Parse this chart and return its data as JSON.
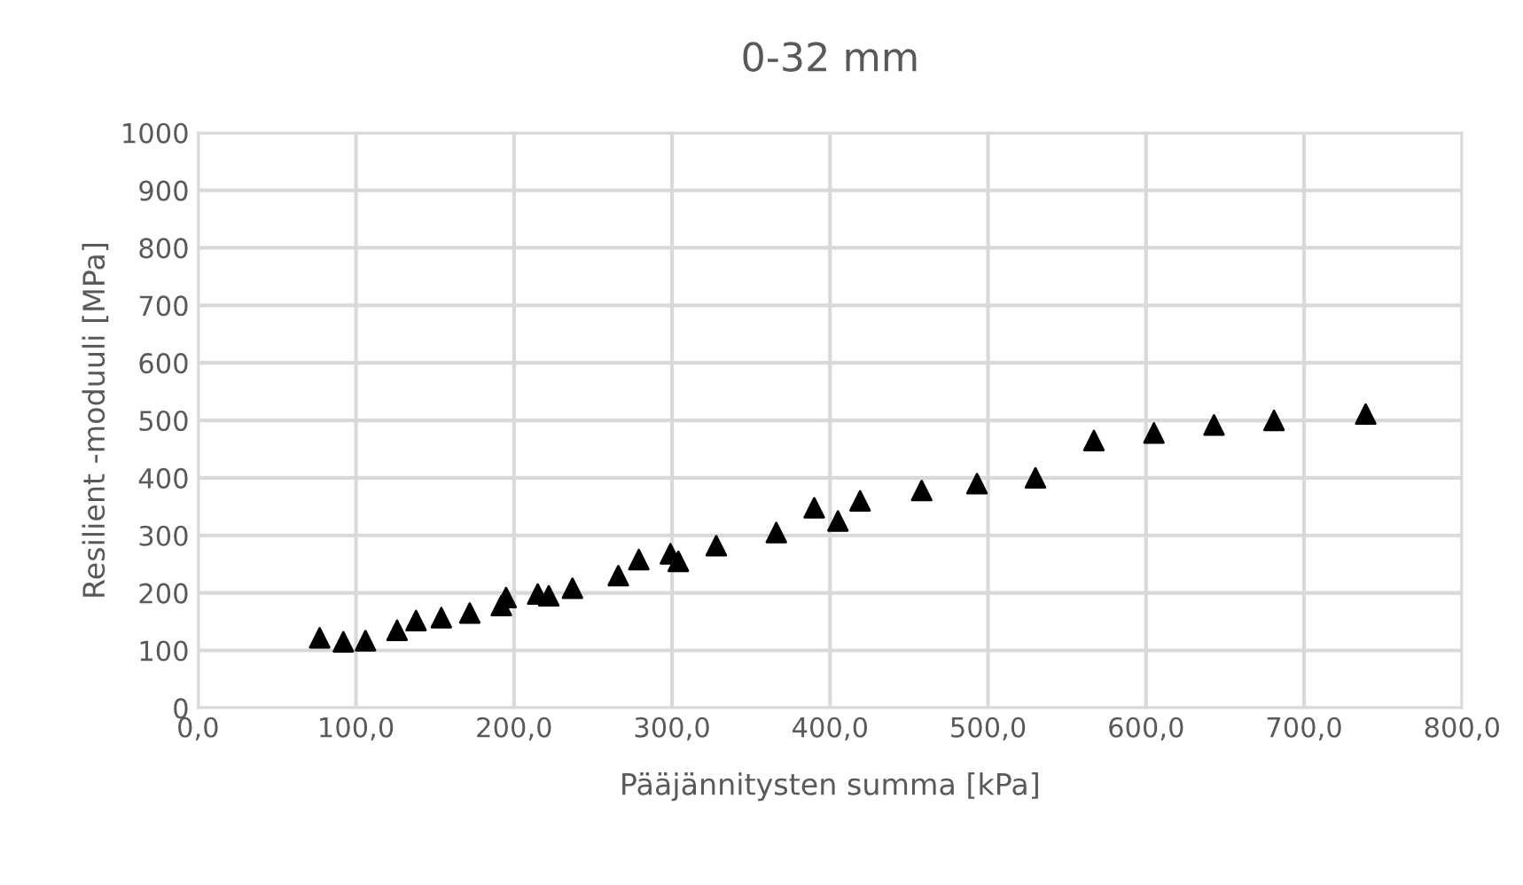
{
  "chart_data": {
    "type": "scatter",
    "title": "0-32 mm",
    "xlabel": "Pääjännitysten summa [kPa]",
    "ylabel": "Resilient -moduuli [MPa]",
    "x": [
      77,
      92,
      106,
      126,
      138,
      154,
      172,
      192,
      195,
      215,
      222,
      237,
      266,
      279,
      299,
      304,
      328,
      366,
      390,
      405,
      419,
      458,
      493,
      530,
      567,
      605,
      643,
      681,
      739
    ],
    "series": [
      {
        "color": "#000000",
        "values": [
          122,
          115,
          117,
          135,
          152,
          157,
          165,
          178,
          192,
          198,
          195,
          208,
          230,
          258,
          268,
          255,
          282,
          305,
          348,
          325,
          360,
          378,
          390,
          400,
          465,
          478,
          492,
          500,
          511
        ]
      }
    ],
    "xlim": [
      0,
      800
    ],
    "ylim": [
      0,
      1000
    ],
    "xticks": [
      {
        "value": 0,
        "label": "0,0"
      },
      {
        "value": 100,
        "label": "100,0"
      },
      {
        "value": 200,
        "label": "200,0"
      },
      {
        "value": 300,
        "label": "300,0"
      },
      {
        "value": 400,
        "label": "400,0"
      },
      {
        "value": 500,
        "label": "500,0"
      },
      {
        "value": 600,
        "label": "600,0"
      },
      {
        "value": 700,
        "label": "700,0"
      },
      {
        "value": 800,
        "label": "800,0"
      }
    ],
    "yticks": [
      0,
      100,
      200,
      300,
      400,
      500,
      600,
      700,
      800,
      900,
      1000
    ],
    "grid": true,
    "marker": "triangle"
  }
}
